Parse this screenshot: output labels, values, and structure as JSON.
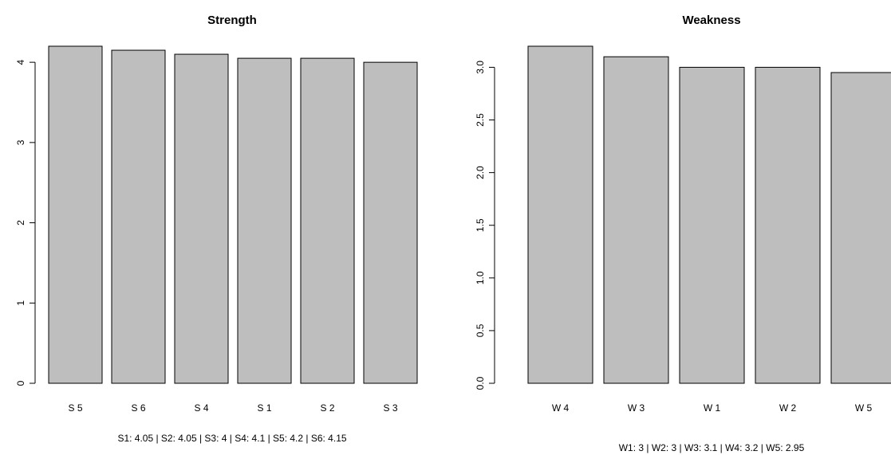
{
  "chart_data": [
    {
      "type": "bar",
      "title": "Strength",
      "categories": [
        "S 5",
        "S 6",
        "S 4",
        "S 1",
        "S 2",
        "S 3"
      ],
      "values": [
        4.2,
        4.15,
        4.1,
        4.05,
        4.05,
        4.0
      ],
      "ylim": [
        0,
        4.2
      ],
      "yticks": [
        0,
        1,
        2,
        3,
        4
      ],
      "ytick_labels": [
        "0",
        "1",
        "2",
        "3",
        "4"
      ],
      "xlabel": "",
      "ylabel": "",
      "grid": false,
      "bar_color": "#bebebe",
      "caption": "S1: 4.05  | S2: 4.05  | S3: 4  | S4: 4.1  | S5: 4.2  | S6: 4.15"
    },
    {
      "type": "bar",
      "title": "Weakness",
      "categories": [
        "W 4",
        "W 3",
        "W 1",
        "W 2",
        "W 5"
      ],
      "values": [
        3.2,
        3.1,
        3.0,
        3.0,
        2.95
      ],
      "ylim": [
        0,
        3.2
      ],
      "yticks": [
        0,
        0.5,
        1,
        1.5,
        2,
        2.5,
        3
      ],
      "ytick_labels": [
        "0.0",
        "0.5",
        "1.0",
        "1.5",
        "2.0",
        "2.5",
        "3.0"
      ],
      "xlabel": "",
      "ylabel": "",
      "grid": false,
      "bar_color": "#bebebe",
      "caption": "W1: 3  | W2: 3  | W3: 3.1  | W4: 3.2  | W5: 2.95"
    }
  ]
}
